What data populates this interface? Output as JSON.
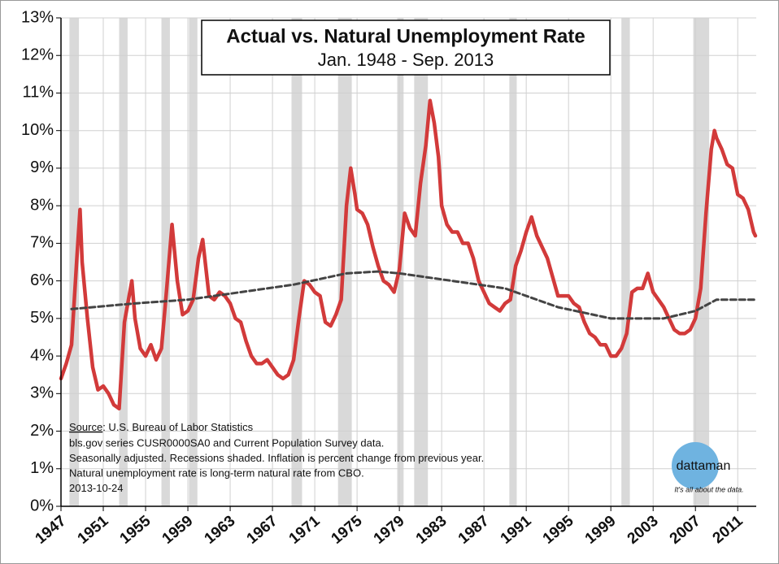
{
  "chart_data": {
    "type": "line",
    "title": "Actual vs. Natural Unemployment Rate",
    "subtitle": "Jan. 1948 - Sep. 2013",
    "source_label": "Source",
    "source_text": ": U.S. Bureau of Labor Statistics",
    "notes": [
      "bls.gov series CUSR0000SA0 and Current Population Survey data.",
      "Seasonally adjusted. Recessions shaded. Inflation is percent change from previous year.",
      "Natural unemployment rate is long-term natural rate from CBO.",
      "2013-10-24"
    ],
    "logo": "dattaman",
    "tagline": "It's all about the data.",
    "xlim": [
      1947,
      2012.75
    ],
    "xticks": [
      1947,
      1951,
      1955,
      1959,
      1963,
      1967,
      1971,
      1975,
      1979,
      1983,
      1987,
      1991,
      1995,
      1999,
      2003,
      2007,
      2011
    ],
    "ylim": [
      0,
      13
    ],
    "yticks": [
      {
        "value": 0,
        "label": "0%"
      },
      {
        "value": 1,
        "label": "1%"
      },
      {
        "value": 2,
        "label": "2%"
      },
      {
        "value": 3,
        "label": "3%"
      },
      {
        "value": 4,
        "label": "4%"
      },
      {
        "value": 5,
        "label": "5%"
      },
      {
        "value": 6,
        "label": "6%"
      },
      {
        "value": 7,
        "label": "7%"
      },
      {
        "value": 8,
        "label": "8%"
      },
      {
        "value": 9,
        "label": "9%"
      },
      {
        "value": 10,
        "label": "10%"
      },
      {
        "value": 11,
        "label": "11%"
      },
      {
        "value": 12,
        "label": "12%"
      },
      {
        "value": 13,
        "label": "13%"
      }
    ],
    "grid": true,
    "recession_color": "#d9d9d9",
    "recessions": [
      [
        1947.8,
        1948.7
      ],
      [
        1952.5,
        1953.3
      ],
      [
        1956.5,
        1957.3
      ],
      [
        1959.1,
        1959.9
      ],
      [
        1968.8,
        1969.8
      ],
      [
        1973.2,
        1974.5
      ],
      [
        1978.8,
        1979.4
      ],
      [
        1980.4,
        1981.7
      ],
      [
        1989.4,
        1990.1
      ],
      [
        2000.0,
        2000.8
      ],
      [
        2006.8,
        2008.3
      ]
    ],
    "series": [
      {
        "color": "#d23a3a",
        "dashed": false,
        "x": [
          1947.0,
          1947.5,
          1948.0,
          1948.5,
          1948.8,
          1949.0,
          1949.5,
          1950.0,
          1950.5,
          1951.0,
          1951.5,
          1952.0,
          1952.5,
          1953.0,
          1953.7,
          1954.0,
          1954.5,
          1955.0,
          1955.5,
          1956.0,
          1956.5,
          1957.0,
          1957.5,
          1958.0,
          1958.5,
          1959.0,
          1959.5,
          1960.0,
          1960.4,
          1961.0,
          1961.5,
          1962.0,
          1962.5,
          1963.0,
          1963.5,
          1964.0,
          1964.5,
          1965.0,
          1965.5,
          1966.0,
          1966.5,
          1967.0,
          1967.5,
          1968.0,
          1968.5,
          1969.0,
          1969.5,
          1970.0,
          1970.5,
          1971.0,
          1971.5,
          1972.0,
          1972.5,
          1973.0,
          1973.5,
          1974.0,
          1974.4,
          1974.8,
          1975.0,
          1975.5,
          1976.0,
          1976.5,
          1977.0,
          1977.5,
          1978.0,
          1978.5,
          1979.0,
          1979.5,
          1980.0,
          1980.5,
          1981.0,
          1981.5,
          1981.9,
          1982.3,
          1982.7,
          1983.0,
          1983.5,
          1984.0,
          1984.5,
          1985.0,
          1985.5,
          1986.0,
          1986.5,
          1987.0,
          1987.5,
          1988.0,
          1988.5,
          1989.0,
          1989.5,
          1990.0,
          1990.5,
          1991.0,
          1991.5,
          1992.0,
          1992.5,
          1993.0,
          1993.5,
          1994.0,
          1994.5,
          1995.0,
          1995.5,
          1996.0,
          1996.5,
          1997.0,
          1997.5,
          1998.0,
          1998.5,
          1999.0,
          1999.5,
          2000.0,
          2000.5,
          2001.0,
          2001.5,
          2002.0,
          2002.5,
          2003.0,
          2003.5,
          2004.0,
          2004.5,
          2005.0,
          2005.5,
          2006.0,
          2006.5,
          2007.0,
          2007.5,
          2008.0,
          2008.5,
          2008.8,
          2009.0,
          2009.5,
          2010.0,
          2010.5,
          2011.0,
          2011.5,
          2012.0,
          2012.5,
          2012.67
        ],
        "values": [
          3.4,
          3.8,
          4.3,
          6.6,
          7.9,
          6.5,
          5.0,
          3.7,
          3.1,
          3.2,
          3.0,
          2.7,
          2.6,
          4.9,
          6.0,
          5.0,
          4.2,
          4.0,
          4.3,
          3.9,
          4.2,
          5.8,
          7.5,
          6.0,
          5.1,
          5.2,
          5.5,
          6.6,
          7.1,
          5.6,
          5.5,
          5.7,
          5.6,
          5.4,
          5.0,
          4.9,
          4.4,
          4.0,
          3.8,
          3.8,
          3.9,
          3.7,
          3.5,
          3.4,
          3.5,
          3.9,
          5.0,
          6.0,
          5.9,
          5.7,
          5.6,
          4.9,
          4.8,
          5.1,
          5.5,
          8.0,
          9.0,
          8.3,
          7.9,
          7.8,
          7.5,
          6.9,
          6.4,
          6.0,
          5.9,
          5.7,
          6.3,
          7.8,
          7.4,
          7.2,
          8.6,
          9.6,
          10.8,
          10.2,
          9.3,
          8.0,
          7.5,
          7.3,
          7.3,
          7.0,
          7.0,
          6.6,
          6.0,
          5.7,
          5.4,
          5.3,
          5.2,
          5.4,
          5.5,
          6.4,
          6.8,
          7.3,
          7.7,
          7.2,
          6.9,
          6.6,
          6.1,
          5.6,
          5.6,
          5.6,
          5.4,
          5.3,
          4.9,
          4.6,
          4.5,
          4.3,
          4.3,
          4.0,
          4.0,
          4.2,
          4.6,
          5.7,
          5.8,
          5.8,
          6.2,
          5.7,
          5.5,
          5.3,
          5.0,
          4.7,
          4.6,
          4.6,
          4.7,
          5.0,
          5.8,
          7.8,
          9.5,
          10.0,
          9.8,
          9.5,
          9.1,
          9.0,
          8.3,
          8.2,
          7.9,
          7.3,
          7.2
        ]
      },
      {
        "color": "#444444",
        "dashed": true,
        "x": [
          1948,
          1954,
          1959,
          1964,
          1969,
          1974,
          1977,
          1979,
          1984,
          1989,
          1994,
          1999,
          2004,
          2007,
          2009,
          2012.67
        ],
        "values": [
          5.25,
          5.4,
          5.5,
          5.7,
          5.9,
          6.2,
          6.25,
          6.2,
          6.0,
          5.8,
          5.3,
          5.0,
          5.0,
          5.2,
          5.5,
          5.5
        ]
      }
    ]
  }
}
